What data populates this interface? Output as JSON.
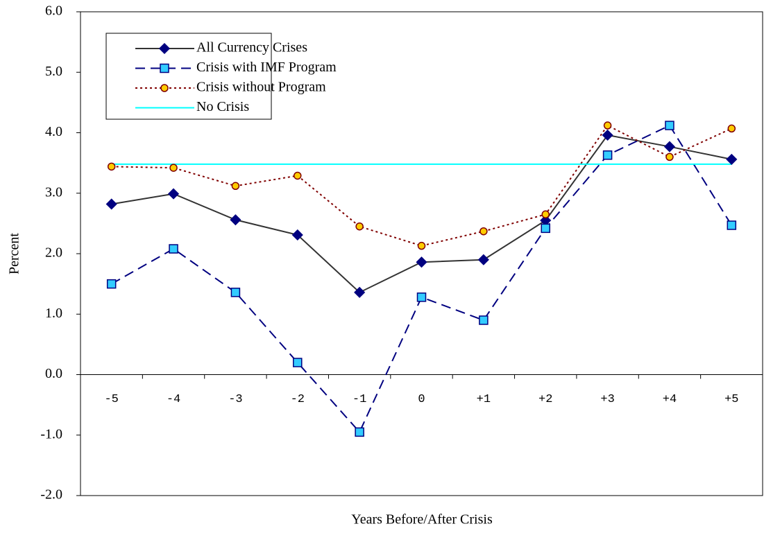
{
  "chart_data": {
    "type": "line",
    "x_label": "Years Before/After Crisis",
    "y_label": "Percent",
    "categories": [
      "-5",
      "-4",
      "-3",
      "-2",
      "-1",
      "0",
      "+1",
      "+2",
      "+3",
      "+4",
      "+5"
    ],
    "series": [
      {
        "name": "All Currency Crises",
        "color": "#333333",
        "marker": "diamond",
        "marker_fill": "#000080",
        "marker_stroke": "#000080",
        "dash": "none",
        "values": [
          2.82,
          2.99,
          2.56,
          2.31,
          1.36,
          1.86,
          1.9,
          2.55,
          3.96,
          3.77,
          3.56
        ]
      },
      {
        "name": "Crisis with IMF Program",
        "color": "#000080",
        "marker": "square",
        "marker_fill": "#33ccff",
        "marker_stroke": "#000080",
        "dash": "14,8",
        "values": [
          1.5,
          2.08,
          1.36,
          0.2,
          -0.95,
          1.28,
          0.9,
          2.42,
          3.63,
          4.12,
          2.47
        ]
      },
      {
        "name": "Crisis without Program",
        "color": "#800000",
        "marker": "circle",
        "marker_fill": "#ffcc00",
        "marker_stroke": "#800000",
        "dash": "3,4",
        "values": [
          3.44,
          3.42,
          3.12,
          3.29,
          2.45,
          2.13,
          2.37,
          2.65,
          4.12,
          3.6,
          4.07
        ]
      },
      {
        "name": "No Crisis",
        "color": "#00ffff",
        "marker": "none",
        "dash": "none",
        "values": [
          3.48,
          3.48,
          3.48,
          3.48,
          3.48,
          3.48,
          3.48,
          3.48,
          3.48,
          3.48,
          3.48
        ]
      }
    ],
    "ylim": [
      -2,
      6
    ],
    "yticks": [
      {
        "value": -2,
        "label": "-2.0"
      },
      {
        "value": -1,
        "label": "-1.0"
      },
      {
        "value": 0,
        "label": "0.0"
      },
      {
        "value": 1,
        "label": "1.0"
      },
      {
        "value": 2,
        "label": "2.0"
      },
      {
        "value": 3,
        "label": "3.0"
      },
      {
        "value": 4,
        "label": "4.0"
      },
      {
        "value": 5,
        "label": "5.0"
      },
      {
        "value": 6,
        "label": "6.0"
      }
    ],
    "grid": false,
    "legend": "top-left"
  }
}
